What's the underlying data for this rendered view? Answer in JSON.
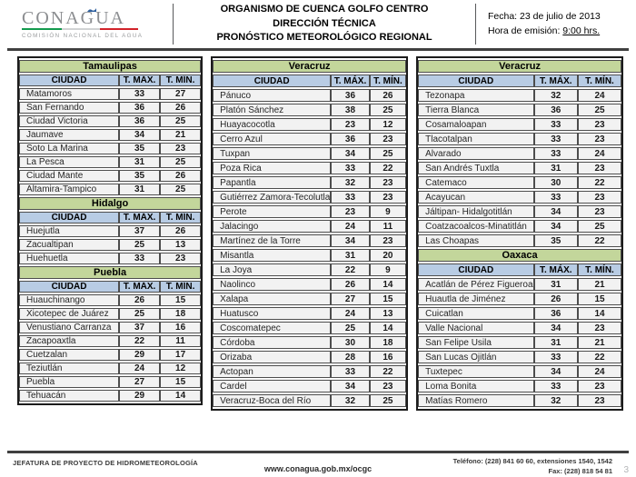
{
  "header": {
    "logo": {
      "title": "CONAGUA",
      "subtitle": "COMISIÓN NACIONAL DEL AGUA",
      "flag_green": "#149a4e",
      "flag_white": "#d1d3d4",
      "flag_red": "#d2232a",
      "accent_blue": "#2e5f9e"
    },
    "title_line1": "ORGANISMO DE CUENCA GOLFO CENTRO",
    "title_line2": "DIRECCIÓN TÉCNICA",
    "title_line3": "PRONÓSTICO METEOROLÓGICO REGIONAL",
    "fecha": "Fecha: 23 de julio de 2013",
    "hora_label": "Hora de emisión: ",
    "hora_value": "9:00 hrs."
  },
  "colors": {
    "state_header_bg": "#c3d69b",
    "column_header_bg": "#b8cce4",
    "row_bg": "#f2f2f2"
  },
  "table_columns": [
    {
      "sections": [
        {
          "state": "Tamaulipas",
          "headers": [
            "CIUDAD",
            "T. MÁX.",
            "T. MÍN."
          ],
          "rows": [
            [
              "Matamoros",
              "33",
              "27"
            ],
            [
              "San Fernando",
              "36",
              "26"
            ],
            [
              "Ciudad Victoria",
              "36",
              "25"
            ],
            [
              "Jaumave",
              "34",
              "21"
            ],
            [
              "Soto La Marina",
              "35",
              "23"
            ],
            [
              "La Pesca",
              "31",
              "25"
            ],
            [
              "Ciudad Mante",
              "35",
              "26"
            ],
            [
              "Altamira-Tampico",
              "31",
              "25"
            ]
          ]
        },
        {
          "state": "Hidalgo",
          "headers": [
            "CIUDAD",
            "T. MÁX.",
            "T. MÍN."
          ],
          "rows": [
            [
              "Huejutla",
              "37",
              "26"
            ],
            [
              "Zacualtipan",
              "25",
              "13"
            ],
            [
              "Huehuetla",
              "33",
              "23"
            ]
          ]
        },
        {
          "state": "Puebla",
          "headers": [
            "CIUDAD",
            "T. MÁX.",
            "T. MÍN."
          ],
          "rows": [
            [
              "Huauchinango",
              "26",
              "15"
            ],
            [
              "Xicotepec de Juárez",
              "25",
              "18"
            ],
            [
              "Venustiano Carranza",
              "37",
              "16"
            ],
            [
              "Zacapoaxtla",
              "22",
              "11"
            ],
            [
              "Cuetzalan",
              "29",
              "17"
            ],
            [
              "Teziutlán",
              "24",
              "12"
            ],
            [
              "Puebla",
              "27",
              "15"
            ],
            [
              "Tehuacán",
              "29",
              "14"
            ]
          ]
        }
      ]
    },
    {
      "sections": [
        {
          "state": "Veracruz",
          "headers": [
            "CIUDAD",
            "T. MÁX.",
            "T. MÍN."
          ],
          "rows": [
            [
              "Pánuco",
              "36",
              "26"
            ],
            [
              "Platón Sánchez",
              "38",
              "25"
            ],
            [
              "Huayacocotla",
              "23",
              "12"
            ],
            [
              "Cerro Azul",
              "36",
              "23"
            ],
            [
              "Tuxpan",
              "34",
              "25"
            ],
            [
              "Poza Rica",
              "33",
              "22"
            ],
            [
              "Papantla",
              "32",
              "23"
            ],
            [
              "Gutiérrez Zamora-Tecolutla",
              "33",
              "23"
            ],
            [
              "Perote",
              "23",
              "9"
            ],
            [
              "Jalacingo",
              "24",
              "11"
            ],
            [
              "Martínez de la Torre",
              "34",
              "23"
            ],
            [
              "Misantla",
              "31",
              "20"
            ],
            [
              "La Joya",
              "22",
              "9"
            ],
            [
              "Naolinco",
              "26",
              "14"
            ],
            [
              "Xalapa",
              "27",
              "15"
            ],
            [
              "Huatusco",
              "24",
              "13"
            ],
            [
              "Coscomatepec",
              "25",
              "14"
            ],
            [
              "Córdoba",
              "30",
              "18"
            ],
            [
              "Orizaba",
              "28",
              "16"
            ],
            [
              "Actopan",
              "33",
              "22"
            ],
            [
              "Cardel",
              "34",
              "23"
            ],
            [
              "Veracruz-Boca del Río",
              "32",
              "25"
            ]
          ]
        }
      ]
    },
    {
      "sections": [
        {
          "state": "Veracruz",
          "headers": [
            "CIUDAD",
            "T. MÁX.",
            "T. MÍN."
          ],
          "rows": [
            [
              "Tezonapa",
              "32",
              "24"
            ],
            [
              "Tierra Blanca",
              "36",
              "25"
            ],
            [
              "Cosamaloapan",
              "33",
              "23"
            ],
            [
              "Tlacotalpan",
              "33",
              "23"
            ],
            [
              "Alvarado",
              "33",
              "24"
            ],
            [
              "San Andrés Tuxtla",
              "31",
              "23"
            ],
            [
              "Catemaco",
              "30",
              "22"
            ],
            [
              "Acayucan",
              "33",
              "23"
            ],
            [
              "Jáltipan- Hidalgotitlán",
              "34",
              "23"
            ],
            [
              "Coatzacoalcos-Minatitlán",
              "34",
              "25"
            ],
            [
              "Las Choapas",
              "35",
              "22"
            ]
          ]
        },
        {
          "state": "Oaxaca",
          "headers": [
            "CIUDAD",
            "T. MÁX.",
            "T. MÍN."
          ],
          "rows": [
            [
              "Acatlán de Pérez Figueroa",
              "31",
              "21"
            ],
            [
              "Huautla de Jiménez",
              "26",
              "15"
            ],
            [
              "Cuicatlan",
              "36",
              "14"
            ],
            [
              "Valle Nacional",
              "34",
              "23"
            ],
            [
              "San Felipe Usila",
              "31",
              "21"
            ],
            [
              "San Lucas Ojitlán",
              "33",
              "22"
            ],
            [
              "Tuxtepec",
              "34",
              "24"
            ],
            [
              "Loma Bonita",
              "33",
              "23"
            ],
            [
              "Matías Romero",
              "32",
              "23"
            ]
          ]
        }
      ]
    }
  ],
  "footer": {
    "left": "JEFATURA DE PROYECTO DE HIDROMETEOROLOGÍA",
    "center": "www.conagua.gob.mx/ocgc",
    "right_line1": "Teléfono: (228) 841 60 60, extensiones 1540, 1542",
    "right_line2": "Fax: (228) 818 54 81",
    "page_number": "3"
  }
}
